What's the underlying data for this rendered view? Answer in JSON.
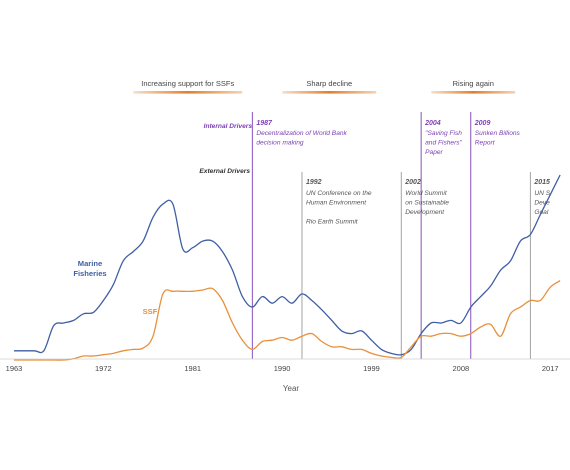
{
  "chart_data": {
    "type": "line",
    "xlabel": "Year",
    "x_tick_labels": [
      "1963",
      "1972",
      "1981",
      "1990",
      "1999",
      "2008",
      "2017"
    ],
    "x_range": [
      1963,
      2019
    ],
    "y_range": [
      0,
      140
    ],
    "colors": {
      "marine": "#3f5fa3",
      "ssf": "#e8903c",
      "internal": "#7b3fb5",
      "external": "#999999",
      "phase": "#e0802e"
    },
    "phases": [
      {
        "label": "Increasing support for SSFs",
        "x_start": 1975,
        "x_end": 1986
      },
      {
        "label": "Sharp decline",
        "x_start": 1990,
        "x_end": 1999.5
      },
      {
        "label": "Rising again",
        "x_start": 2005,
        "x_end": 2013.5
      }
    ],
    "driver_labels": {
      "internal": "Internal Drivers",
      "external": "External Drivers"
    },
    "events": [
      {
        "year": "1987",
        "x": 1987,
        "type": "internal",
        "lines": [
          "Decentralization of World Bank",
          "decision making"
        ]
      },
      {
        "year": "1992",
        "x": 1992,
        "type": "external",
        "lines": [
          "UN Conference on the",
          "Human Environment",
          "",
          "Rio Earth Summit"
        ]
      },
      {
        "year": "2002",
        "x": 2002,
        "type": "external",
        "lines": [
          "World Summit",
          "on Sustainable",
          "Development"
        ]
      },
      {
        "year": "2004",
        "x": 2004,
        "type": "internal",
        "lines": [
          "\"Saving Fish",
          "and Fishers\"",
          "Paper"
        ]
      },
      {
        "year": "2009",
        "x": 2009,
        "type": "internal",
        "lines": [
          "Sunken Billions",
          "Report"
        ]
      },
      {
        "year": "2015",
        "x": 2015,
        "type": "external",
        "lines": [
          "UN S",
          "Deve",
          "Goal"
        ]
      }
    ],
    "series": [
      {
        "name": "Marine Fisheries",
        "label_lines": [
          "Marine",
          "Fisheries"
        ],
        "x": [
          1963,
          1965,
          1966,
          1967,
          1968,
          1969,
          1970,
          1971,
          1972,
          1973,
          1974,
          1975,
          1976,
          1977,
          1978,
          1979,
          1980,
          1981,
          1982,
          1983,
          1984,
          1985,
          1986,
          1987,
          1988,
          1989,
          1990,
          1991,
          1992,
          1993,
          1994,
          1995,
          1996,
          1997,
          1998,
          1999,
          2000,
          2001,
          2002,
          2003,
          2004,
          2005,
          2006,
          2007,
          2008,
          2009,
          2010,
          2011,
          2012,
          2013,
          2014,
          2015,
          2016,
          2017,
          2018
        ],
        "values": [
          7,
          7,
          7,
          26,
          28,
          30,
          35,
          36,
          45,
          57,
          75,
          82,
          90,
          108,
          118,
          118,
          84,
          85,
          90,
          90,
          82,
          68,
          48,
          40,
          48,
          43,
          48,
          43,
          50,
          45,
          38,
          30,
          22,
          20,
          22,
          15,
          8,
          5,
          4,
          8,
          20,
          28,
          28,
          30,
          28,
          40,
          48,
          56,
          68,
          75,
          90,
          95,
          110,
          125,
          140
        ]
      },
      {
        "name": "SSF",
        "label_lines": [
          "SSF"
        ],
        "x": [
          1963,
          1964,
          1965,
          1966,
          1967,
          1968,
          1969,
          1970,
          1971,
          1972,
          1973,
          1974,
          1975,
          1976,
          1977,
          1978,
          1979,
          1980,
          1981,
          1982,
          1983,
          1984,
          1985,
          1986,
          1987,
          1988,
          1989,
          1990,
          1991,
          1992,
          1993,
          1994,
          1995,
          1996,
          1997,
          1998,
          1999,
          2000,
          2001,
          2002,
          2003,
          2004,
          2005,
          2006,
          2007,
          2008,
          2009,
          2010,
          2011,
          2012,
          2013,
          2014,
          2015,
          2016,
          2017,
          2018
        ],
        "values": [
          0,
          0,
          0,
          0,
          0,
          0,
          1,
          3,
          3,
          4,
          5,
          7,
          8,
          9,
          18,
          50,
          52,
          52,
          52,
          53,
          54,
          45,
          28,
          15,
          8,
          14,
          15,
          17,
          15,
          18,
          20,
          14,
          10,
          10,
          8,
          8,
          5,
          3,
          2,
          2,
          10,
          18,
          18,
          20,
          20,
          18,
          20,
          25,
          27,
          18,
          35,
          40,
          45,
          45,
          55,
          60
        ]
      }
    ]
  }
}
